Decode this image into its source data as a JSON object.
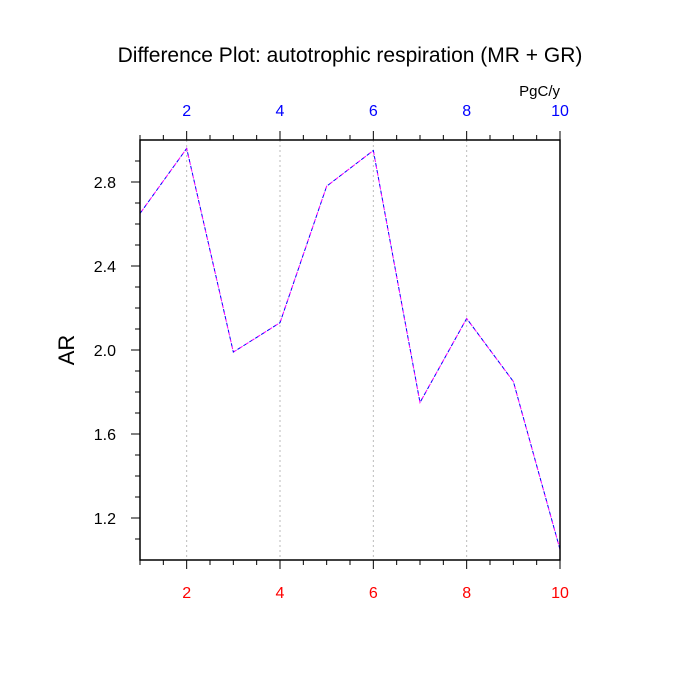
{
  "chart_data": {
    "type": "line",
    "title": "Difference Plot: autotrophic respiration (MR + GR)",
    "units": "PgC/y",
    "ylabel": "AR",
    "xlim": [
      1,
      10
    ],
    "ylim": [
      1.0,
      3.0
    ],
    "x_ticks": [
      2,
      4,
      6,
      8,
      10
    ],
    "y_ticks": [
      1.2,
      1.6,
      2.0,
      2.4,
      2.8
    ],
    "y_tick_labels": [
      "1.2",
      "1.6",
      "2.0",
      "2.4",
      "2.8"
    ],
    "grid": "vertical-dashed",
    "colors": {
      "bottom_ticks": "#ff0000",
      "top_ticks": "#0000ff",
      "line_a": "#0000ff",
      "line_b": "#ff00ff",
      "grid": "#bbbbbb"
    },
    "series": [
      {
        "x": [
          1,
          2,
          3,
          4,
          5,
          6,
          7,
          8,
          9,
          10
        ],
        "values": [
          2.65,
          2.96,
          1.99,
          2.13,
          2.78,
          2.95,
          1.75,
          2.15,
          1.85,
          1.05
        ]
      }
    ]
  }
}
